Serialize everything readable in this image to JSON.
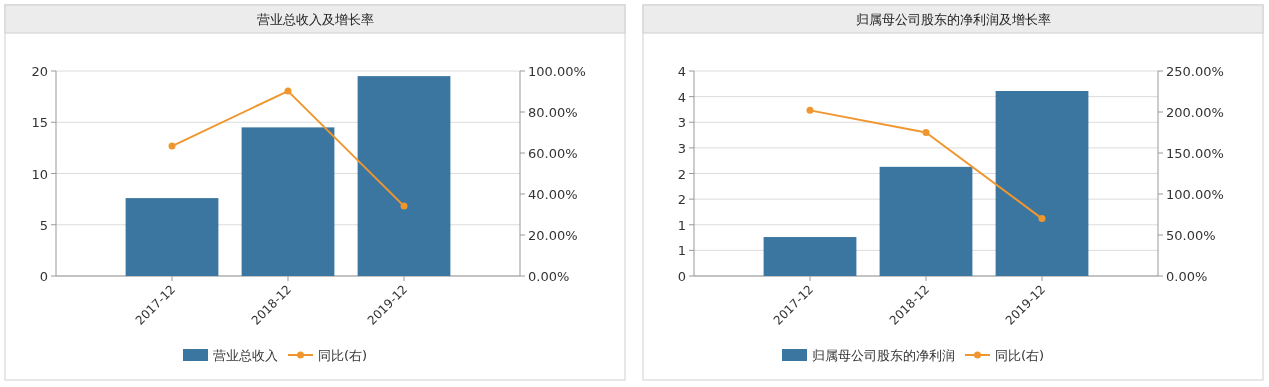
{
  "chart_data": [
    {
      "type": "bar",
      "title": "营业总收入及增长率",
      "categories": [
        "2017-12",
        "2018-12",
        "2019-12"
      ],
      "series": [
        {
          "name": "营业总收入",
          "color": "#3b76a0",
          "values": [
            7.6,
            14.5,
            19.5
          ]
        },
        {
          "name": "同比(右)",
          "type": "line",
          "axis": "y2",
          "color": "#f0962e",
          "marker": "circle",
          "values": [
            63.4,
            90.2,
            34.1
          ]
        }
      ],
      "ylim": [
        0,
        20
      ],
      "yticks": [
        0,
        5,
        10,
        15,
        20
      ],
      "y2lim": [
        0,
        100
      ],
      "y2ticks": [
        {
          "value": 0,
          "label": "0.00%"
        },
        {
          "value": 20,
          "label": "20.00%"
        },
        {
          "value": 40,
          "label": "40.00%"
        },
        {
          "value": 60,
          "label": "60.00%"
        },
        {
          "value": 80,
          "label": "80.00%"
        },
        {
          "value": 100,
          "label": "100.00%"
        }
      ],
      "grid": "y",
      "legend": "bottom"
    },
    {
      "type": "bar",
      "title": "归属母公司股东的净利润及增长率",
      "categories": [
        "2017-12",
        "2018-12",
        "2019-12"
      ],
      "series": [
        {
          "name": "归属母公司股东的净利润",
          "color": "#3b76a0",
          "values": [
            0.76,
            2.13,
            3.61
          ]
        },
        {
          "name": "同比(右)",
          "type": "line",
          "axis": "y2",
          "color": "#f0962e",
          "marker": "circle",
          "values": [
            202,
            175,
            70
          ]
        }
      ],
      "ylim": [
        0,
        4
      ],
      "yticks": [
        0,
        {
          "value": 0.5,
          "label": "1"
        },
        1,
        {
          "value": 1.5,
          "label": "2"
        },
        2,
        {
          "value": 2.5,
          "label": "3"
        },
        3,
        {
          "value": 3.5,
          "label": "4"
        },
        4
      ],
      "y2lim": [
        0,
        250
      ],
      "y2ticks": [
        {
          "value": 0,
          "label": "0.00%"
        },
        {
          "value": 50,
          "label": "50.00%"
        },
        {
          "value": 100,
          "label": "100.00%"
        },
        {
          "value": 150,
          "label": "150.00%"
        },
        {
          "value": 200,
          "label": "200.00%"
        },
        {
          "value": 250,
          "label": "250.00%"
        }
      ],
      "grid": "y",
      "legend": "bottom"
    }
  ]
}
